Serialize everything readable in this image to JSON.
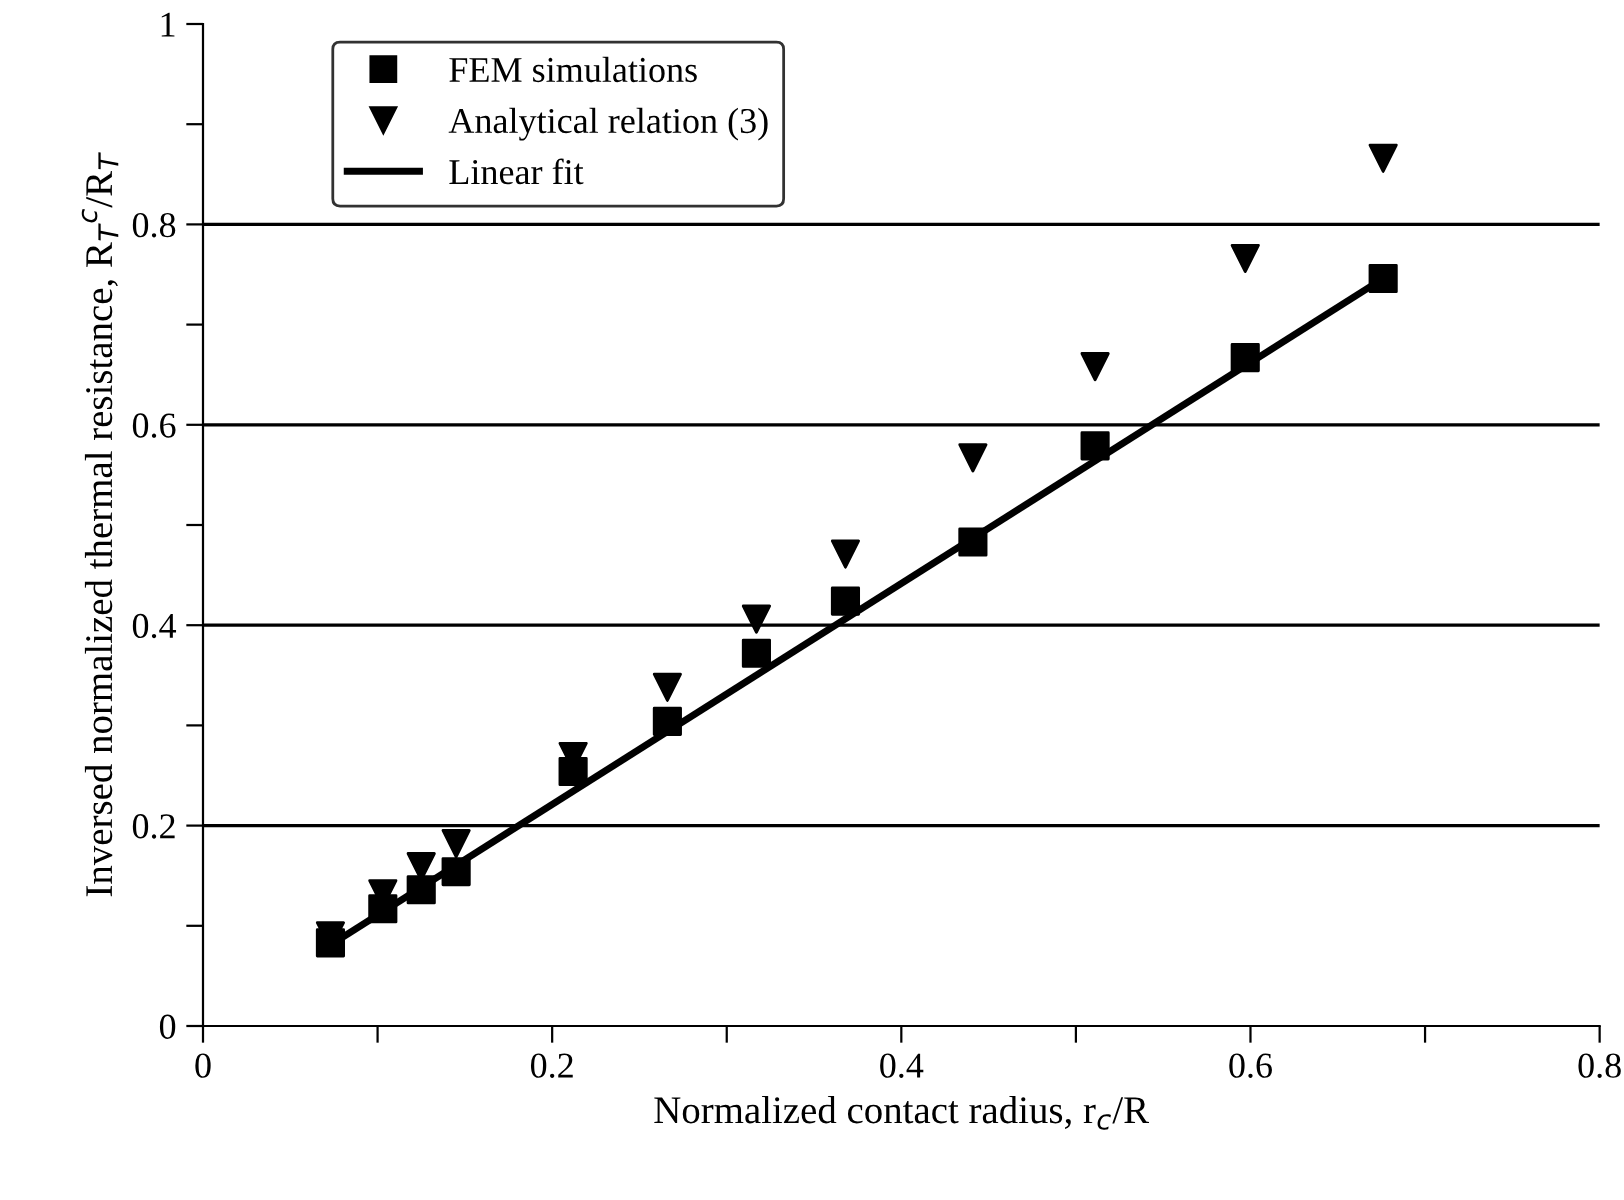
{
  "chart_data": {
    "type": "scatter",
    "xlabel": "Normalized contact radius, r$_{c}$/R",
    "ylabel": "Inversed normalized thermal resistance, R$_{T}$$^{c}$/R$_{T}$",
    "series": [
      {
        "name": "FEM simulations",
        "marker": "square",
        "color": "#000000",
        "x": [
          0.073,
          0.103,
          0.125,
          0.145,
          0.212,
          0.266,
          0.317,
          0.368,
          0.441,
          0.511,
          0.597,
          0.676
        ],
        "values": [
          0.083,
          0.117,
          0.136,
          0.154,
          0.254,
          0.304,
          0.372,
          0.424,
          0.483,
          0.579,
          0.667,
          0.746
        ]
      },
      {
        "name": "Analytical relation (3)",
        "marker": "triangle",
        "color": "#000000",
        "x": [
          0.073,
          0.103,
          0.125,
          0.145,
          0.212,
          0.266,
          0.317,
          0.368,
          0.441,
          0.511,
          0.597,
          0.676
        ],
        "values": [
          0.09,
          0.132,
          0.159,
          0.182,
          0.269,
          0.338,
          0.406,
          0.471,
          0.567,
          0.658,
          0.766,
          0.866
        ]
      },
      {
        "name": "Linear fit",
        "type": "line",
        "marker": "none",
        "line_style": "solid",
        "color": "#000000",
        "x": [
          0.073,
          0.676
        ],
        "values": [
          0.081,
          0.746
        ]
      }
    ],
    "xlim": [
      0,
      0.8
    ],
    "ylim": [
      0,
      1
    ],
    "xticks": [
      0,
      {
        "value": 0.1,
        "label": null
      },
      0.2,
      {
        "value": 0.3,
        "label": null
      },
      0.4,
      {
        "value": 0.5,
        "label": null
      },
      0.6,
      {
        "value": 0.7,
        "label": null
      },
      0.8
    ],
    "yticks": [
      0,
      {
        "value": 0.1,
        "label": null
      },
      0.2,
      {
        "value": 0.3,
        "label": null
      },
      0.4,
      {
        "value": 0.5,
        "label": null
      },
      0.6,
      {
        "value": 0.7,
        "label": null
      },
      0.8,
      {
        "value": 0.9,
        "label": null
      },
      1
    ],
    "grid": "y",
    "legend": "top left"
  }
}
